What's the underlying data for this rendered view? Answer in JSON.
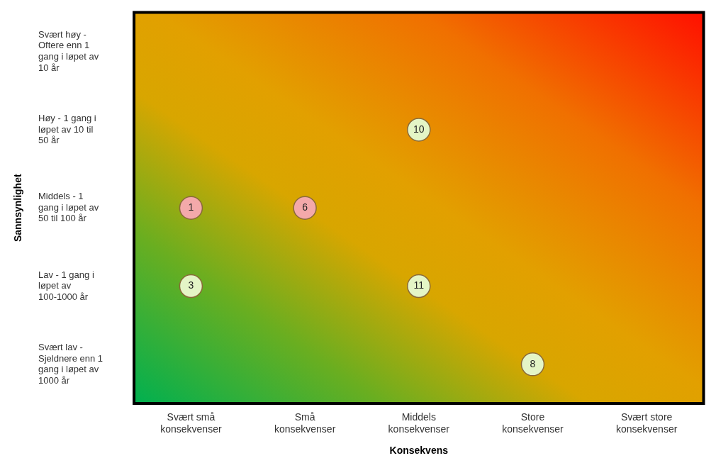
{
  "chart_data": {
    "type": "heatmap",
    "xlabel": "Konsekvens",
    "ylabel": "Sannsynlighet",
    "categories": [
      "Svært små konsekvenser",
      "Små konsekvenser",
      "Middels konsekvenser",
      "Store konsekvenser",
      "Svært store konsekvenser"
    ],
    "y_categories": [
      "Svært høy - Oftere enn 1 gang i løpet av 10 år",
      "Høy - 1 gang i løpet av 10 til 50 år",
      "Middels - 1 gang i løpet av 50 til 100 år",
      "Lav - 1 gang i løpet av 100-1000 år",
      "Svært lav - Sjeldnere enn 1 gang i løpet av 1000 år"
    ],
    "cells": [
      [
        null,
        null,
        null,
        null,
        null
      ],
      [
        null,
        null,
        10,
        null,
        null
      ],
      [
        1,
        6,
        null,
        null,
        null
      ],
      [
        3,
        null,
        11,
        null,
        null
      ],
      [
        null,
        null,
        null,
        8,
        null
      ]
    ],
    "colors": [
      [
        null,
        null,
        null,
        null,
        null
      ],
      [
        null,
        null,
        "#e4f5c6",
        null,
        null
      ],
      [
        "#f4a9aa",
        "#f4a9aa",
        null,
        null,
        null
      ],
      [
        "#e4f5c6",
        null,
        "#e4f5c6",
        null,
        null
      ],
      [
        null,
        null,
        null,
        "#e4f5c6",
        null
      ]
    ],
    "grid": false,
    "legend": false,
    "data_labels": true
  }
}
